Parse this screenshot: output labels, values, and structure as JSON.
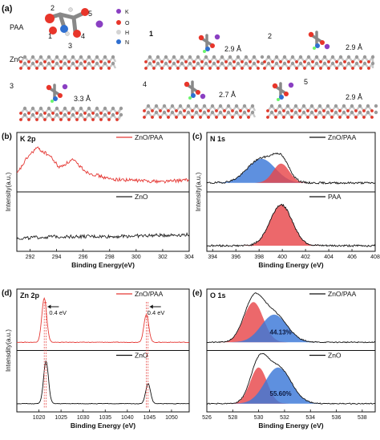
{
  "panel_a": {
    "letter": "(a)",
    "paa_label": "PAA",
    "zno_label": "ZnO",
    "atom_numbers": [
      "1",
      "2",
      "3",
      "4",
      "5"
    ],
    "legend": [
      {
        "symbol": "K",
        "color": "#8a3fc2"
      },
      {
        "symbol": "O",
        "color": "#e8352a"
      },
      {
        "symbol": "H",
        "color": "#d4d4d4"
      },
      {
        "symbol": "N",
        "color": "#2f6fd0"
      }
    ],
    "configs": [
      {
        "label": "1",
        "distance": "2.9 Å"
      },
      {
        "label": "2",
        "distance": "2.9 Å"
      },
      {
        "label": "3",
        "distance": "3.3 Å"
      },
      {
        "label": "4",
        "distance": "2.7 Å"
      },
      {
        "label": "5",
        "distance": "2.9 Å"
      }
    ]
  },
  "chart_data": [
    {
      "panel": "(b)",
      "type": "line",
      "title": "K 2p",
      "xlabel": "Binding Energy(eV)",
      "ylabel": "Intensity(a.u.)",
      "xlim": [
        291,
        304
      ],
      "xticks": [
        292,
        294,
        296,
        298,
        300,
        302,
        304
      ],
      "x_reversed": false,
      "subplots": [
        {
          "legend": "ZnO/PAA",
          "color": "#e53935",
          "shape": [
            [
              291,
              0.3
            ],
            [
              291.8,
              0.65
            ],
            [
              292.5,
              0.85
            ],
            [
              293.5,
              0.68
            ],
            [
              294.2,
              0.44
            ],
            [
              295.2,
              0.6
            ],
            [
              296.3,
              0.34
            ],
            [
              298,
              0.2
            ],
            [
              300,
              0.17
            ],
            [
              302,
              0.15
            ],
            [
              304,
              0.18
            ]
          ]
        },
        {
          "legend": "ZnO",
          "color": "#222222",
          "shape": [
            [
              291,
              0.2
            ],
            [
              294,
              0.24
            ],
            [
              298,
              0.24
            ],
            [
              301,
              0.26
            ],
            [
              304,
              0.28
            ]
          ]
        }
      ]
    },
    {
      "panel": "(c)",
      "type": "line",
      "title": "N 1s",
      "xlabel": "Binding Energy (eV)",
      "ylabel": "Intensity(a.u.)",
      "xlim": [
        393.5,
        408
      ],
      "xticks": [
        394,
        396,
        398,
        400,
        402,
        404,
        406,
        408
      ],
      "x_reversed": false,
      "subplots": [
        {
          "legend": "ZnO/PAA",
          "color": "#111111",
          "peaks": [
            {
              "center": 398.2,
              "height": 0.5,
              "width": 1.2,
              "fill": "#3a78d8"
            },
            {
              "center": 399.9,
              "height": 0.4,
              "width": 0.7,
              "fill": "#e8474a"
            }
          ],
          "baseline": 0.12
        },
        {
          "legend": "PAA",
          "color": "#111111",
          "peaks": [
            {
              "center": 399.9,
              "height": 0.85,
              "width": 0.95,
              "fill": "#e8474a"
            }
          ],
          "baseline": 0.05
        }
      ]
    },
    {
      "panel": "(d)",
      "type": "line",
      "title": "Zn 2p",
      "xlabel": "Binding Energy (eV)",
      "ylabel": "Intensdity(a.u.)",
      "xlim": [
        1015,
        1054
      ],
      "xticks": [
        1020,
        1025,
        1030,
        1035,
        1040,
        1045,
        1050
      ],
      "x_reversed": false,
      "shift_annotations": [
        "0.4 eV",
        "0.4 eV"
      ],
      "subplots": [
        {
          "legend": "ZnO/PAA",
          "color": "#e53935",
          "peaks": [
            {
              "center": 1021.2,
              "height": 0.88
            },
            {
              "center": 1044.3,
              "height": 0.55
            }
          ]
        },
        {
          "legend": "ZnO",
          "color": "#111111",
          "peaks": [
            {
              "center": 1021.6,
              "height": 0.85
            },
            {
              "center": 1044.7,
              "height": 0.4
            }
          ]
        }
      ]
    },
    {
      "panel": "(e)",
      "type": "line",
      "title": "O 1s",
      "xlabel": "Binding Energy (eV)",
      "ylabel": "",
      "xlim": [
        526,
        539
      ],
      "xticks": [
        526,
        528,
        530,
        532,
        534,
        536,
        538
      ],
      "x_reversed": false,
      "subplots": [
        {
          "legend": "ZnO/PAA",
          "color": "#111111",
          "percent_label": "44.13%",
          "peaks": [
            {
              "center": 529.6,
              "height": 0.8,
              "width": 0.75,
              "fill": "#e8474a"
            },
            {
              "center": 531.2,
              "height": 0.55,
              "width": 1.0,
              "fill": "#3a78d8"
            }
          ]
        },
        {
          "legend": "ZnO",
          "color": "#111111",
          "percent_label": "55.60%",
          "peaks": [
            {
              "center": 530.0,
              "height": 0.72,
              "width": 0.65,
              "fill": "#e8474a"
            },
            {
              "center": 531.5,
              "height": 0.72,
              "width": 1.0,
              "fill": "#3a78d8"
            }
          ]
        }
      ]
    }
  ]
}
